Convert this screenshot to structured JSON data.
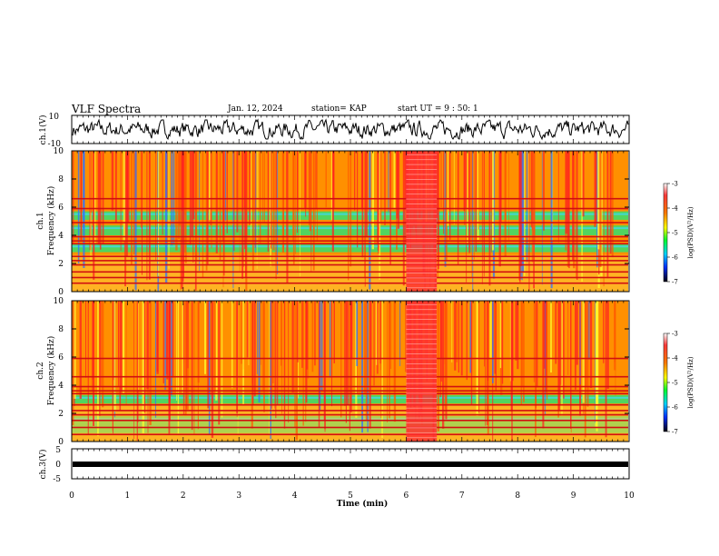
{
  "header": {
    "title": "VLF Spectra",
    "date": "Jan. 12, 2024",
    "station": "station= KAP",
    "start": "start  UT =   9 : 50: 1"
  },
  "chart_data": [
    {
      "type": "line",
      "title": "",
      "ylabel": "ch.1(V)",
      "ylim": [
        -10,
        10
      ],
      "yticks": [
        "10",
        "-10"
      ],
      "xlim": [
        0,
        10
      ],
      "note": "continuous waveform, amplitude roughly -7 to 7 V"
    },
    {
      "type": "heatmap",
      "ylabel_line1": "ch.1",
      "ylabel_line2": "Frequency  (kHz)",
      "ylim": [
        0,
        10
      ],
      "yticks": [
        "0",
        "2",
        "4",
        "6",
        "8",
        "10"
      ],
      "xlim": [
        0,
        10
      ],
      "colorbar": {
        "label": "log(PSD)(V²/Hz)",
        "ticks": [
          "-3",
          "-4",
          "-5",
          "-6",
          "-7"
        ],
        "range": [
          -7,
          -3
        ]
      },
      "band_lines_khz": [
        0.6,
        1.0,
        1.4,
        1.9,
        2.2,
        2.5,
        3.4,
        3.6,
        3.9,
        4.9,
        5.9,
        6.6
      ],
      "green_bands_khz": [
        [
          2.8,
          3.4
        ],
        [
          4.0,
          4.7
        ],
        [
          5.1,
          5.7
        ]
      ],
      "disturbance_min": [
        6.0,
        6.55
      ]
    },
    {
      "type": "heatmap",
      "ylabel_line1": "ch.2",
      "ylabel_line2": "Frequency  (kHz)",
      "ylim": [
        0,
        10
      ],
      "yticks": [
        "0",
        "2",
        "4",
        "6",
        "8",
        "10"
      ],
      "xlim": [
        0,
        10
      ],
      "colorbar": {
        "label": "log(PSD)(V²/Hz)",
        "ticks": [
          "-3",
          "-4",
          "-5",
          "-6",
          "-7"
        ],
        "range": [
          -7,
          -3
        ]
      },
      "band_lines_khz": [
        0.5,
        1.0,
        1.5,
        1.9,
        2.2,
        2.6,
        3.4,
        3.6,
        3.9,
        4.6,
        5.9
      ],
      "green_bands_khz": [
        [
          2.7,
          3.3
        ],
        [
          0.6,
          1.8
        ]
      ],
      "disturbance_min": [
        6.0,
        6.55
      ]
    },
    {
      "type": "line",
      "ylabel": "ch.3(V)",
      "ylim": [
        -5,
        5
      ],
      "yticks": [
        "5",
        "0",
        "-5"
      ],
      "xlim": [
        0,
        10
      ],
      "xlabel": "Time  (min)",
      "xticks": [
        "0",
        "1",
        "2",
        "3",
        "4",
        "5",
        "6",
        "7",
        "8",
        "9",
        "10"
      ],
      "note": "thick flat trace near 0 V"
    }
  ]
}
